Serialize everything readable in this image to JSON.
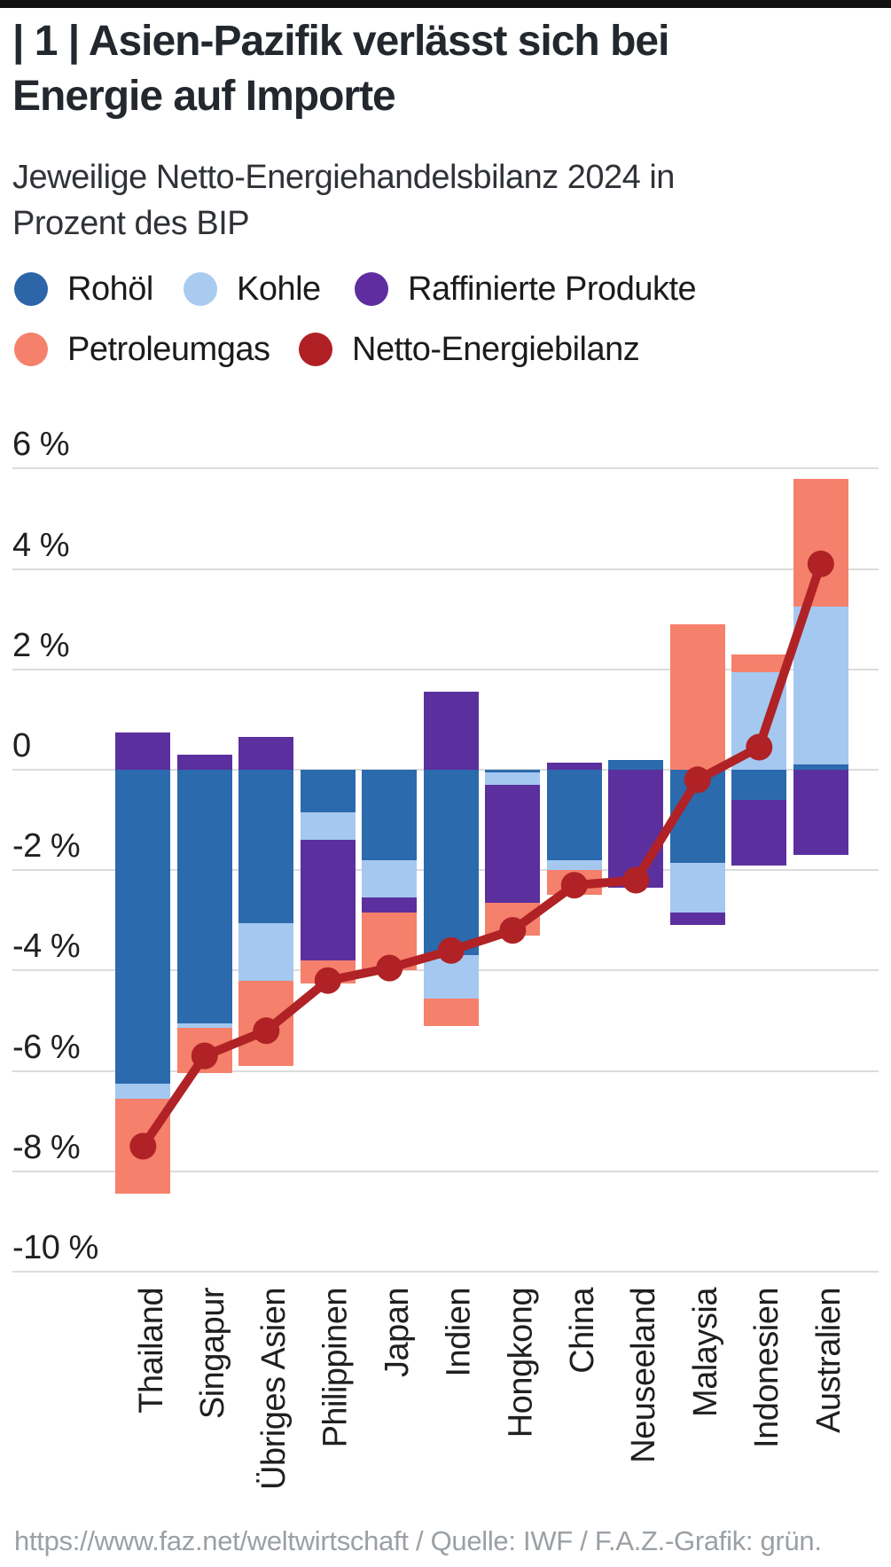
{
  "header": {
    "title_line1": "| 1 | Asien-Pazifik verlässt sich bei",
    "title_line2": "Energie auf Importe",
    "subtitle_line1": "Jeweilige Netto-Energiehandelsbilanz 2024 in",
    "subtitle_line2": "Prozent des BIP"
  },
  "legend": {
    "rows": [
      [
        {
          "label": "Rohöl",
          "color": "#2c66a9"
        },
        {
          "label": "Kohle",
          "color": "#a9cbf0"
        },
        {
          "label": "Raffinierte Produkte",
          "color": "#5f2da0"
        }
      ],
      [
        {
          "label": "Petroleumgas",
          "color": "#f5806b"
        },
        {
          "label": "Netto-Energiebilanz",
          "color": "#b01f24"
        }
      ]
    ]
  },
  "chart_data": {
    "type": "bar",
    "stacked": true,
    "title": "Asien-Pazifik verlässt sich bei Energie auf Importe",
    "subtitle": "Jeweilige Netto-Energiehandelsbilanz 2024 in Prozent des BIP",
    "unit": "Prozent des BIP",
    "grid": "horizontal",
    "ylim": [
      -10.6,
      6.9
    ],
    "categories": [
      "Thailand",
      "Singapur",
      "Übriges Asien",
      "Philippinen",
      "Japan",
      "Indien",
      "Hongkong",
      "China",
      "Neuseeland",
      "Malaysia",
      "Indonesien",
      "Australien"
    ],
    "series": [
      {
        "name": "Rohöl",
        "color": "#2b6aad",
        "values": [
          -6.25,
          -5.05,
          -3.05,
          -0.85,
          -1.8,
          -3.7,
          -0.05,
          -1.8,
          0.2,
          -1.85,
          -0.6,
          0.1
        ]
      },
      {
        "name": "Kohle",
        "color": "#a5c8f0",
        "values": [
          -0.3,
          -0.1,
          -1.15,
          -0.55,
          -0.75,
          -0.85,
          -0.25,
          -0.2,
          0,
          -1.0,
          1.95,
          3.15
        ]
      },
      {
        "name": "Raffinierte Produkte",
        "color": "#5c2f9e",
        "values": [
          0.75,
          0.3,
          0.65,
          -2.4,
          -0.3,
          1.55,
          -2.35,
          0.15,
          -2.35,
          -0.25,
          -1.3,
          -1.7
        ]
      },
      {
        "name": "Petroleumgas",
        "color": "#f5806b",
        "values": [
          -1.9,
          -0.9,
          -1.7,
          -0.45,
          -1.15,
          -0.55,
          -0.65,
          -0.5,
          0,
          2.9,
          0.35,
          2.55
        ]
      }
    ],
    "line_series": {
      "name": "Netto-Energiebilanz",
      "color": "#b02225",
      "values": [
        -7.5,
        -5.7,
        -5.2,
        -4.2,
        -3.95,
        -3.6,
        -3.2,
        -2.3,
        -2.2,
        -0.2,
        0.45,
        4.1
      ]
    },
    "y_ticks": [
      {
        "value": 6,
        "label": "6 %"
      },
      {
        "value": 4,
        "label": "4 %"
      },
      {
        "value": 2,
        "label": "2 %"
      },
      {
        "value": 0,
        "label": "0"
      },
      {
        "value": -2,
        "label": "-2 %"
      },
      {
        "value": -4,
        "label": "-4 %"
      },
      {
        "value": -6,
        "label": "-6 %"
      },
      {
        "value": -8,
        "label": "-8 %"
      },
      {
        "value": -10,
        "label": "-10 %"
      }
    ]
  },
  "footer": {
    "source_line": "https://www.faz.net/weltwirtschaft / Quelle: IWF / F.A.Z.-Grafik: grün."
  }
}
